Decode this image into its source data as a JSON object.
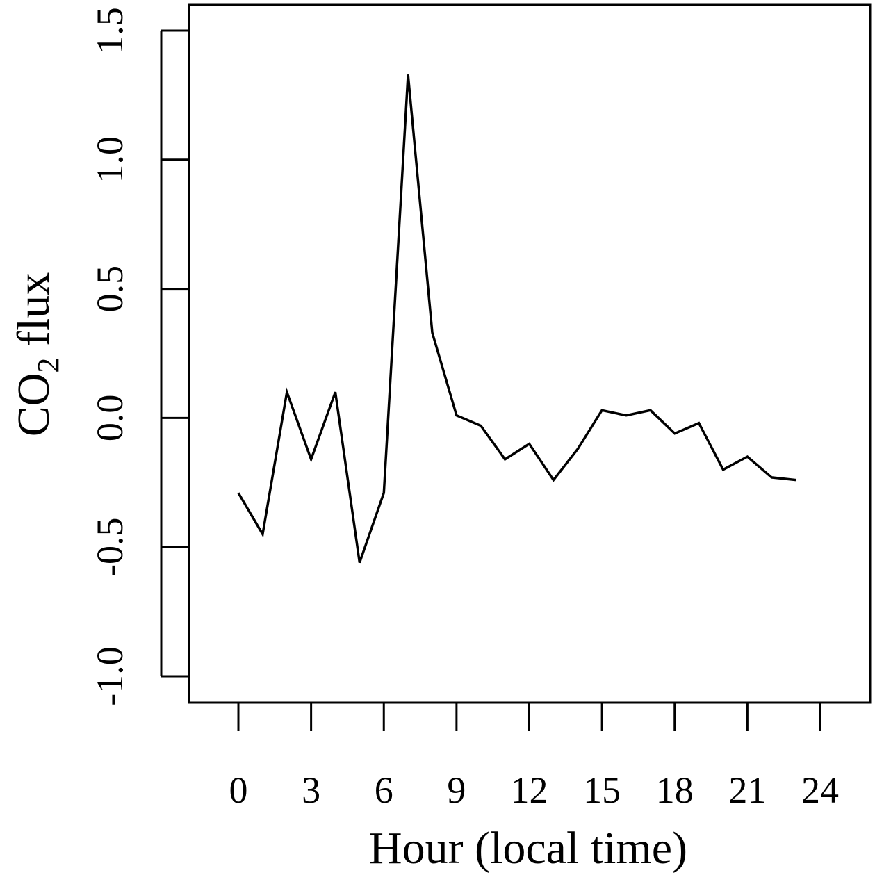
{
  "chart_data": {
    "type": "line",
    "xlabel": "Hour (local time)",
    "ylabel": {
      "prefix": "CO",
      "subscript": "2",
      "suffix": " flux"
    },
    "xlim": [
      0,
      24
    ],
    "ylim": [
      -1.0,
      1.5
    ],
    "x_ticks": [
      0,
      3,
      6,
      9,
      12,
      15,
      18,
      21,
      24
    ],
    "y_ticks": [
      "-1.0",
      "-0.5",
      "0.0",
      "0.5",
      "1.0",
      "1.5"
    ],
    "grid": false,
    "line_color": "#000000",
    "series": [
      {
        "x": [
          0,
          1,
          2,
          3,
          4,
          5,
          6,
          7,
          8,
          9,
          10,
          11,
          12,
          13,
          14,
          15,
          16,
          17,
          18,
          19,
          20,
          21,
          22,
          23
        ],
        "values": [
          -0.29,
          -0.45,
          0.1,
          -0.16,
          0.1,
          -0.56,
          -0.29,
          1.33,
          0.33,
          0.01,
          -0.03,
          -0.16,
          -0.1,
          -0.24,
          -0.12,
          0.03,
          0.01,
          0.03,
          -0.06,
          -0.02,
          -0.2,
          -0.15,
          -0.23,
          -0.24
        ]
      }
    ]
  }
}
